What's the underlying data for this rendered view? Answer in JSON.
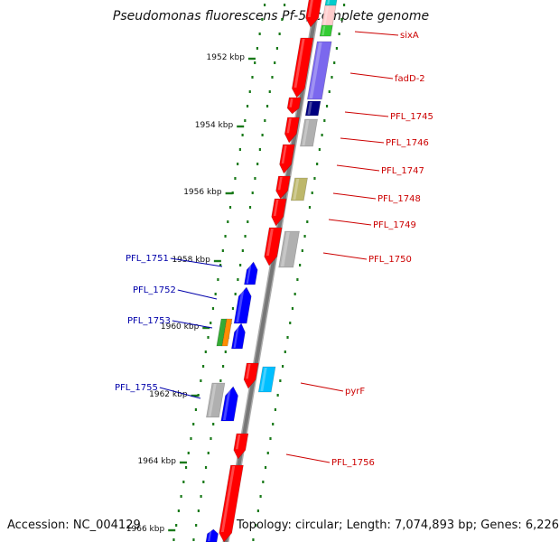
{
  "title": "Pseudomonas fluorescens Pf-5, complete genome",
  "footer": {
    "accession": "Accession: NC_004129",
    "topology": "Topology: circular; Length: 7,074,893 bp; Genes: 6,226"
  },
  "ruler_unit": "kbp",
  "ruler_ticks": [
    1952,
    1954,
    1956,
    1958,
    1960,
    1962,
    1964,
    1966
  ],
  "colors": {
    "cds_forward": "#ff0000",
    "cds_reverse": "#0000ff",
    "backbone": "#888888",
    "tick": "#1a7a1a",
    "label_forward": "#cc0000",
    "label_reverse": "#0000aa"
  },
  "genes": [
    {
      "name": "sixA",
      "strand": "forward"
    },
    {
      "name": "fadD-2",
      "strand": "forward"
    },
    {
      "name": "PFL_1745",
      "strand": "forward"
    },
    {
      "name": "PFL_1746",
      "strand": "forward"
    },
    {
      "name": "PFL_1747",
      "strand": "forward"
    },
    {
      "name": "PFL_1748",
      "strand": "forward"
    },
    {
      "name": "PFL_1749",
      "strand": "forward"
    },
    {
      "name": "PFL_1750",
      "strand": "forward"
    },
    {
      "name": "PFL_1751",
      "strand": "reverse"
    },
    {
      "name": "PFL_1752",
      "strand": "reverse"
    },
    {
      "name": "PFL_1753",
      "strand": "reverse"
    },
    {
      "name": "PFL_1755",
      "strand": "reverse"
    },
    {
      "name": "pyrF",
      "strand": "forward"
    },
    {
      "name": "PFL_1756",
      "strand": "forward"
    }
  ],
  "category_colors": [
    "#00cccc",
    "#7b68ee",
    "#000080",
    "#b0b0b0",
    "#bdb76b",
    "#33aa33",
    "#ff8c00",
    "#00bfff",
    "#ffcccc"
  ]
}
